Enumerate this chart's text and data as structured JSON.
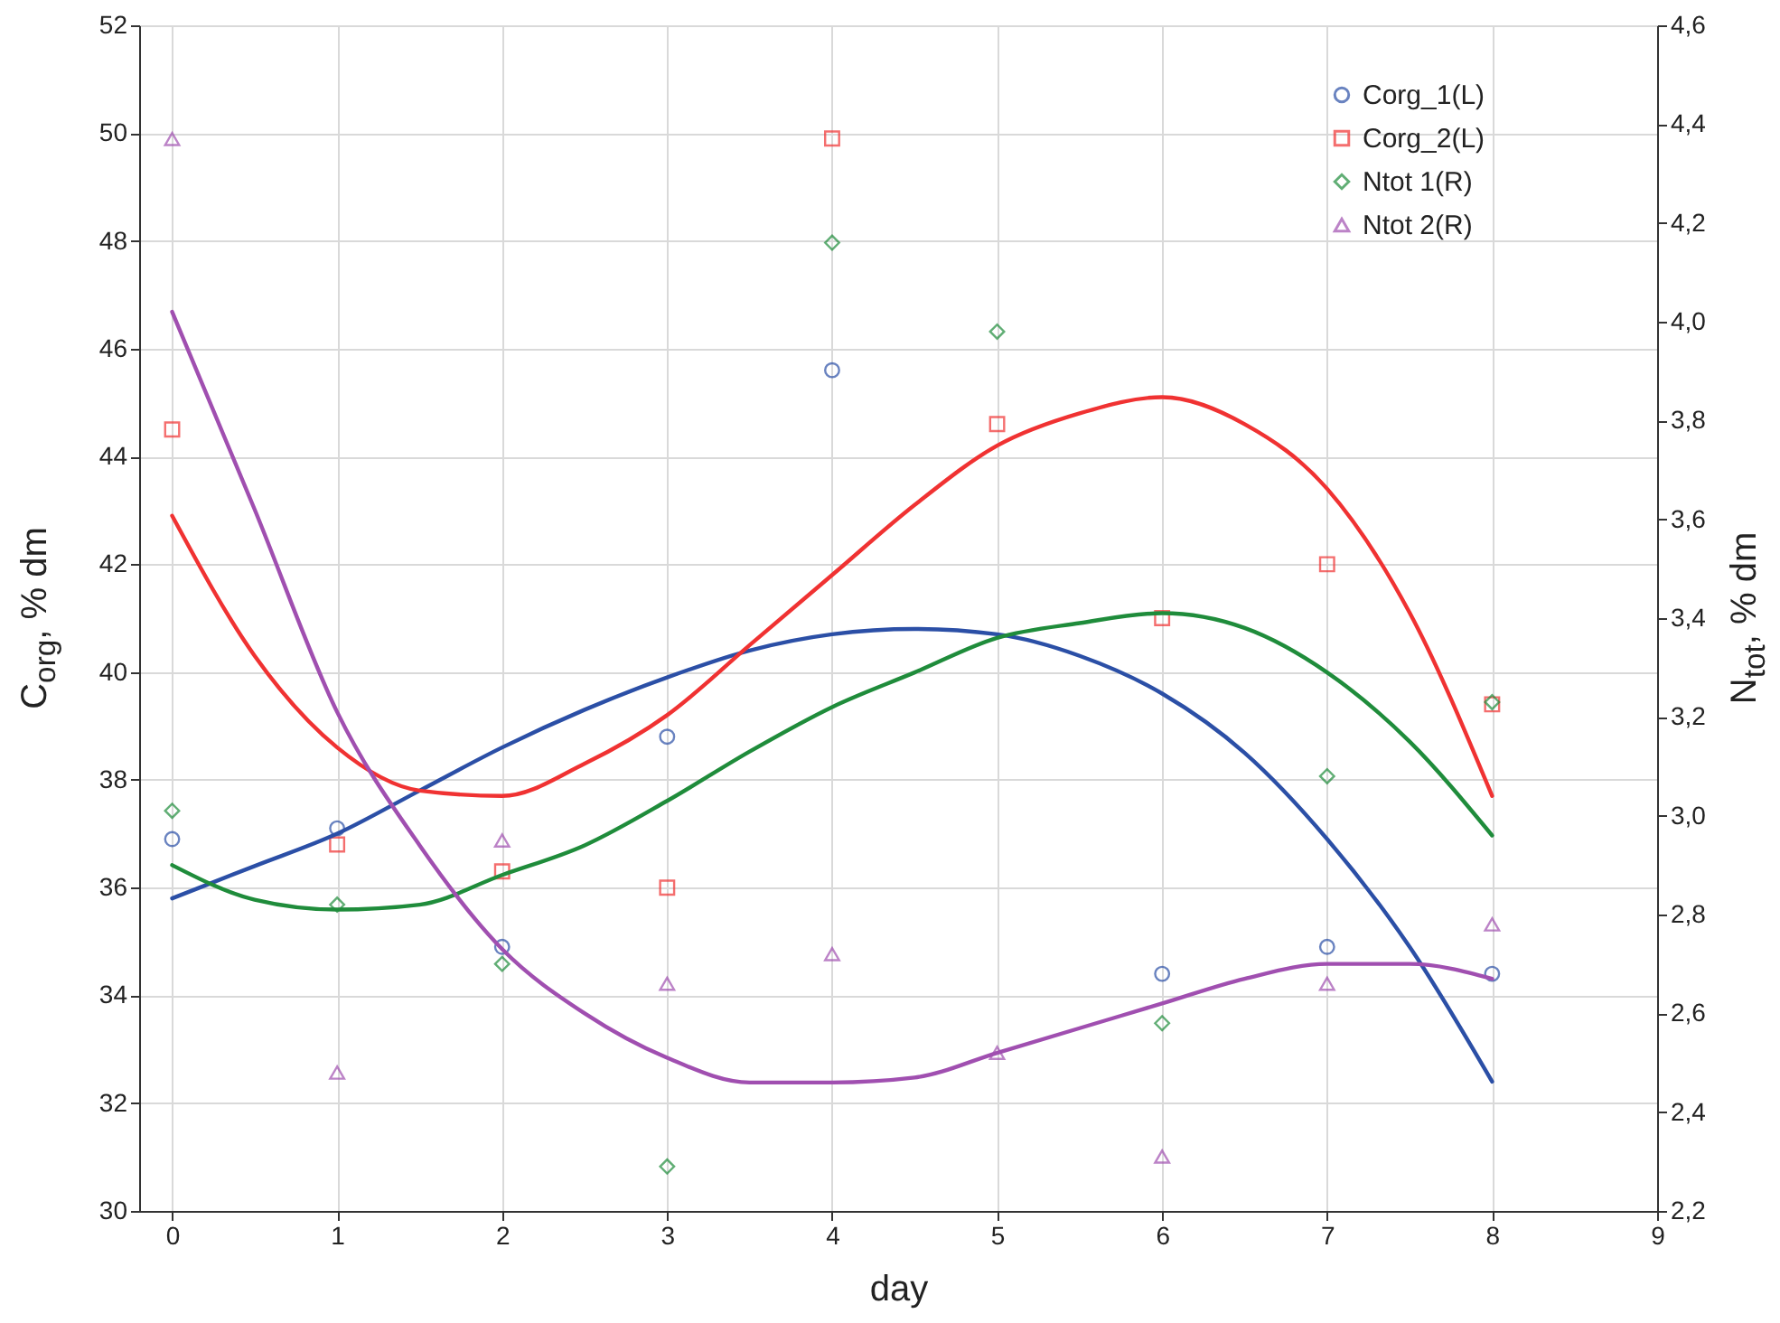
{
  "chart_data": {
    "type": "scatter",
    "xlabel": "day",
    "ylabel": "C$_{org}$, % dm",
    "y2label": "N$_{tot}$, % dm",
    "x": [
      0,
      1,
      2,
      3,
      4,
      5,
      6,
      7,
      8
    ],
    "xlim": [
      -0.2,
      9
    ],
    "xticks": [
      0,
      1,
      2,
      3,
      4,
      5,
      6,
      7,
      8,
      9
    ],
    "ylim": [
      30,
      52
    ],
    "yticks": [
      30,
      32,
      34,
      36,
      38,
      40,
      42,
      44,
      46,
      48,
      50,
      52
    ],
    "y2lim": [
      2.2,
      4.6
    ],
    "y2ticks": [
      {
        "value": 2.2,
        "label": "2,2"
      },
      {
        "value": 2.4,
        "label": "2,4"
      },
      {
        "value": 2.6,
        "label": "2,6"
      },
      {
        "value": 2.8,
        "label": "2,8"
      },
      {
        "value": 3.0,
        "label": "3,0"
      },
      {
        "value": 3.2,
        "label": "3,2"
      },
      {
        "value": 3.4,
        "label": "3,4"
      },
      {
        "value": 3.6,
        "label": "3,6"
      },
      {
        "value": 3.8,
        "label": "3,8"
      },
      {
        "value": 4.0,
        "label": "4,0"
      },
      {
        "value": 4.2,
        "label": "4,2"
      },
      {
        "value": 4.4,
        "label": "4,4"
      },
      {
        "value": 4.6,
        "label": "4,6"
      }
    ],
    "grid": true,
    "legend": "top right",
    "line_style": "solid",
    "series": [
      {
        "name": "Corg_1(L)",
        "marker": "circle",
        "color": "#2b4fa6",
        "values": [
          36.9,
          37.1,
          34.9,
          38.8,
          45.6,
          null,
          34.4,
          34.9,
          34.4
        ]
      },
      {
        "name": "Corg_2(L)",
        "marker": "square",
        "color": "#f03232",
        "values": [
          44.5,
          36.8,
          36.3,
          36.0,
          49.9,
          44.6,
          41.0,
          42.0,
          39.4
        ]
      },
      {
        "name": "Ntot 1(R)",
        "marker": "diamond",
        "color": "#1f8c3b",
        "axis": "y2",
        "values": [
          3.01,
          2.82,
          2.7,
          2.29,
          4.16,
          3.98,
          2.58,
          3.08,
          3.23
        ]
      },
      {
        "name": "Ntot 2(R)",
        "marker": "triangle",
        "color": "#a04fb0",
        "axis": "y2",
        "values": [
          4.37,
          2.48,
          2.95,
          2.66,
          2.72,
          2.52,
          2.31,
          2.66,
          2.78
        ]
      },
      {
        "type": "line",
        "color": "#2b4fa6",
        "x": [
          0,
          0.5,
          1,
          1.5,
          2,
          2.5,
          3,
          3.5,
          4,
          4.5,
          5,
          5.5,
          6,
          6.5,
          7,
          7.5,
          8
        ],
        "values": [
          35.8,
          36.4,
          37.0,
          37.8,
          38.6,
          39.3,
          39.9,
          40.4,
          40.7,
          40.8,
          40.7,
          40.3,
          39.6,
          38.5,
          36.9,
          34.9,
          32.4
        ]
      },
      {
        "type": "line",
        "color": "#f03232",
        "x": [
          0,
          0.5,
          1,
          1.5,
          2,
          2.5,
          3,
          3.5,
          4,
          4.5,
          5,
          5.5,
          6,
          6.5,
          7,
          7.5,
          8
        ],
        "values": [
          42.9,
          40.3,
          38.6,
          37.8,
          37.7,
          38.3,
          39.2,
          40.5,
          41.8,
          43.1,
          44.2,
          44.8,
          45.1,
          44.6,
          43.4,
          41.1,
          37.7
        ]
      },
      {
        "type": "line",
        "color": "#1f8c3b",
        "axis": "y2",
        "x": [
          0,
          0.5,
          1,
          1.5,
          2,
          2.5,
          3,
          3.5,
          4,
          4.5,
          5,
          5.5,
          6,
          6.5,
          7,
          7.5,
          8
        ],
        "values": [
          2.9,
          2.83,
          2.81,
          2.82,
          2.88,
          2.94,
          3.03,
          3.13,
          3.22,
          3.29,
          3.36,
          3.39,
          3.41,
          3.38,
          3.29,
          3.15,
          2.96
        ]
      },
      {
        "type": "line",
        "color": "#a04fb0",
        "axis": "y2",
        "x": [
          0,
          0.5,
          1,
          1.5,
          2,
          2.5,
          3,
          3.5,
          4,
          4.5,
          5,
          5.5,
          6,
          6.5,
          7,
          7.5,
          8
        ],
        "values": [
          4.02,
          3.62,
          3.21,
          2.94,
          2.73,
          2.6,
          2.51,
          2.46,
          2.46,
          2.47,
          2.52,
          2.57,
          2.62,
          2.67,
          2.7,
          2.7,
          2.67
        ]
      }
    ]
  }
}
